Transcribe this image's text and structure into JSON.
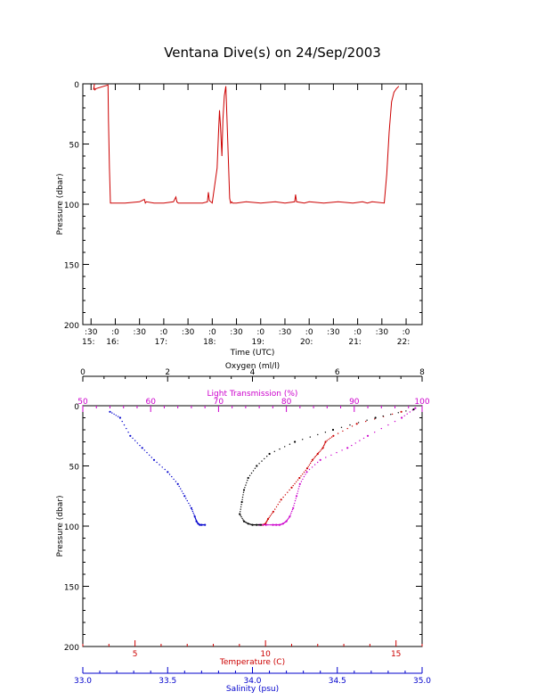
{
  "title": "Ventana Dive(s) on 24/Sep/2003",
  "colors": {
    "axis": "#000000",
    "temperature": "#cc0000",
    "salinity": "#0000cc",
    "light": "#cc00cc",
    "oxygen": "#000000",
    "trace_red": "#cc0000"
  },
  "chart_data": [
    {
      "type": "line",
      "title": "Ventana Dive(s) on 24/Sep/2003",
      "xlabel": "Time (UTC)",
      "ylabel": "Pressure (dbar)",
      "ylim": [
        200,
        0
      ],
      "xlim_hours": [
        15.33,
        22.33
      ],
      "yticks": [
        0,
        50,
        100,
        150,
        200
      ],
      "xticks": [
        {
          "h": 15.5,
          "top": ":30",
          "bottom": "15:"
        },
        {
          "h": 16.0,
          "top": ":0",
          "bottom": "16:"
        },
        {
          "h": 16.5,
          "top": ":30",
          "bottom": ""
        },
        {
          "h": 17.0,
          "top": ":0",
          "bottom": "17:"
        },
        {
          "h": 17.5,
          "top": ":30",
          "bottom": ""
        },
        {
          "h": 18.0,
          "top": ":0",
          "bottom": "18:"
        },
        {
          "h": 18.5,
          "top": ":30",
          "bottom": ""
        },
        {
          "h": 19.0,
          "top": ":0",
          "bottom": "19:"
        },
        {
          "h": 19.5,
          "top": ":30",
          "bottom": ""
        },
        {
          "h": 20.0,
          "top": ":0",
          "bottom": "20:"
        },
        {
          "h": 20.5,
          "top": ":30",
          "bottom": ""
        },
        {
          "h": 21.0,
          "top": ":0",
          "bottom": "21:"
        },
        {
          "h": 21.5,
          "top": ":30",
          "bottom": ""
        },
        {
          "h": 22.0,
          "top": ":0",
          "bottom": "22:"
        }
      ],
      "series": [
        {
          "color": "#cc0000",
          "time_hours": [
            15.55,
            15.57,
            15.56,
            15.58,
            15.6,
            15.85,
            15.86,
            15.88,
            15.9,
            15.95,
            16.2,
            16.5,
            16.6,
            16.62,
            16.64,
            16.8,
            17.0,
            17.2,
            17.25,
            17.27,
            17.3,
            17.5,
            17.8,
            17.9,
            17.92,
            17.94,
            18.0,
            18.1,
            18.13,
            18.15,
            18.17,
            18.2,
            18.22,
            18.25,
            18.28,
            18.3,
            18.33,
            18.36,
            18.38,
            18.4,
            18.42,
            18.45,
            18.5,
            18.7,
            19.0,
            19.3,
            19.5,
            19.7,
            19.72,
            19.74,
            19.9,
            20.0,
            20.3,
            20.6,
            20.9,
            21.1,
            21.2,
            21.3,
            21.55,
            21.6,
            21.65,
            21.7,
            21.75,
            21.8,
            21.85
          ],
          "pressure": [
            5,
            0,
            3,
            5,
            4,
            1,
            30,
            70,
            99,
            99,
            99,
            98,
            96,
            99,
            98,
            99,
            99,
            98,
            94,
            98,
            99,
            99,
            99,
            98,
            90,
            97,
            99,
            70,
            40,
            22,
            35,
            60,
            30,
            10,
            2,
            25,
            60,
            95,
            99,
            98,
            99,
            99,
            99,
            98,
            99,
            98,
            99,
            98,
            92,
            98,
            99,
            98,
            99,
            98,
            99,
            98,
            99,
            98,
            99,
            75,
            40,
            15,
            7,
            4,
            2
          ]
        }
      ]
    },
    {
      "type": "scatter",
      "ylabel": "Pressure (dbar)",
      "ylim": [
        200,
        0
      ],
      "yticks": [
        0,
        50,
        100,
        150,
        200
      ],
      "axes": {
        "oxygen": {
          "label": "Oxygen (ml/l)",
          "range": [
            0,
            8
          ],
          "ticks": [
            0,
            2,
            4,
            6,
            8
          ],
          "position": "top"
        },
        "light_transmission": {
          "label": "Light Transmission (%)",
          "range": [
            50,
            100
          ],
          "ticks": [
            50,
            60,
            70,
            80,
            90,
            100
          ],
          "position": "top"
        },
        "temperature": {
          "label": "Temperature (C)",
          "range": [
            3,
            16
          ],
          "ticks": [
            5,
            10,
            15
          ],
          "position": "bottom"
        },
        "salinity": {
          "label": "Salinity (psu)",
          "range": [
            33.0,
            35.0
          ],
          "ticks": [
            "33.0",
            "33.5",
            "34.0",
            "34.5",
            "35.0"
          ],
          "position": "bottom"
        }
      },
      "series": [
        {
          "name": "Salinity (psu)",
          "color": "#0000cc",
          "axis": "salinity",
          "x": [
            33.16,
            33.22,
            33.28,
            33.35,
            33.42,
            33.5,
            33.56,
            33.6,
            33.64,
            33.66,
            33.67,
            33.68,
            33.69,
            33.7,
            33.72
          ],
          "y": [
            5,
            10,
            25,
            35,
            45,
            55,
            65,
            75,
            85,
            92,
            96,
            98,
            99,
            99,
            99
          ]
        },
        {
          "name": "Temperature (C)",
          "color": "#cc0000",
          "axis": "temperature",
          "x": [
            15.2,
            13.5,
            12.6,
            12.3,
            12.2,
            12.0,
            11.8,
            11.6,
            11.3,
            11.0,
            10.6,
            10.3,
            10.1,
            10.0,
            9.9
          ],
          "y": [
            5,
            15,
            25,
            30,
            35,
            40,
            45,
            52,
            60,
            68,
            78,
            88,
            94,
            98,
            99
          ]
        },
        {
          "name": "Light Transmission (%)",
          "color": "#cc00cc",
          "axis": "light_transmission",
          "x": [
            99,
            97,
            92,
            89,
            85,
            83,
            82,
            81.5,
            81,
            80.5,
            80,
            79.5,
            79,
            78.5,
            78,
            77,
            76
          ],
          "y": [
            2,
            10,
            25,
            35,
            45,
            55,
            65,
            75,
            85,
            92,
            96,
            98,
            99,
            99,
            99,
            99,
            99
          ]
        },
        {
          "name": "Oxygen (ml/l)",
          "color": "#000000",
          "axis": "oxygen",
          "x": [
            7.8,
            6.9,
            5.9,
            5.0,
            4.4,
            4.1,
            3.9,
            3.8,
            3.75,
            3.7,
            3.8,
            3.9,
            4.0,
            4.1,
            4.2
          ],
          "y": [
            3,
            10,
            20,
            30,
            40,
            50,
            60,
            70,
            80,
            90,
            96,
            98,
            99,
            99,
            99
          ]
        }
      ]
    }
  ]
}
